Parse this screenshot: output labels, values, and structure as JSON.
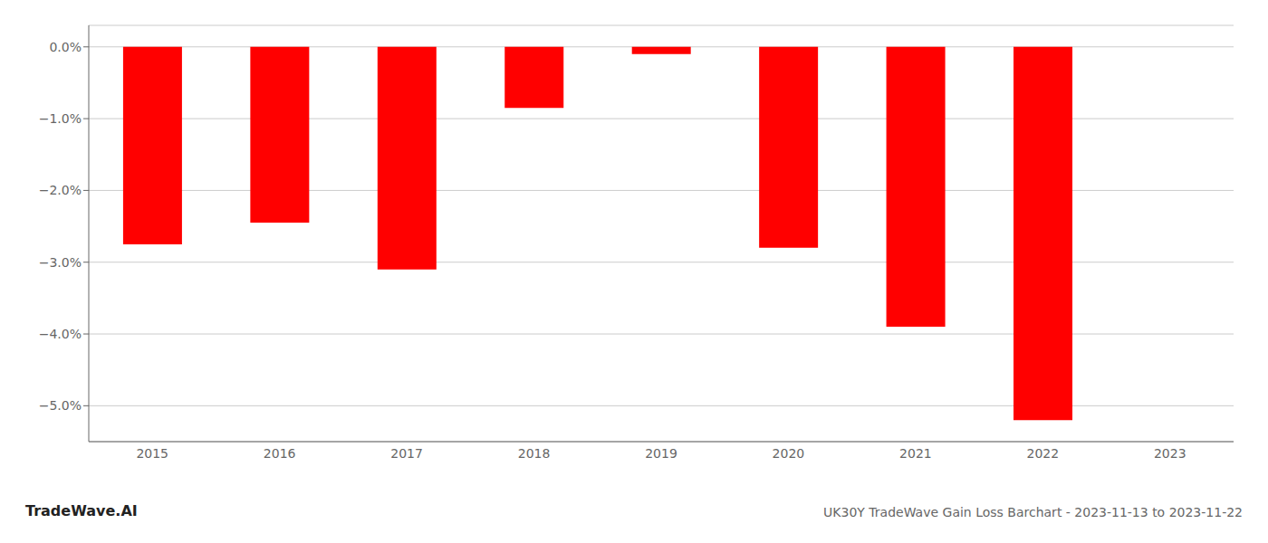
{
  "chart_data": {
    "type": "bar",
    "title": "UK30Y TradeWave Gain Loss Barchart - 2023-11-13 to 2023-11-22",
    "annotations": [
      "TradeWave.AI"
    ],
    "categories": [
      "2015",
      "2016",
      "2017",
      "2018",
      "2019",
      "2020",
      "2021",
      "2022",
      "2023"
    ],
    "values": [
      -2.75,
      -2.45,
      -3.1,
      -0.85,
      -0.1,
      -2.8,
      -3.9,
      -5.2,
      0.0
    ],
    "color": "#ff0000",
    "ylim": [
      -5.5,
      0.3
    ],
    "yticks": [
      {
        "value": 0.0,
        "label": "0.0%"
      },
      {
        "value": -1.0,
        "label": "−1.0%"
      },
      {
        "value": -2.0,
        "label": "−2.0%"
      },
      {
        "value": -3.0,
        "label": "−3.0%"
      },
      {
        "value": -4.0,
        "label": "−4.0%"
      },
      {
        "value": -5.0,
        "label": "−5.0%"
      }
    ],
    "grid": true
  }
}
